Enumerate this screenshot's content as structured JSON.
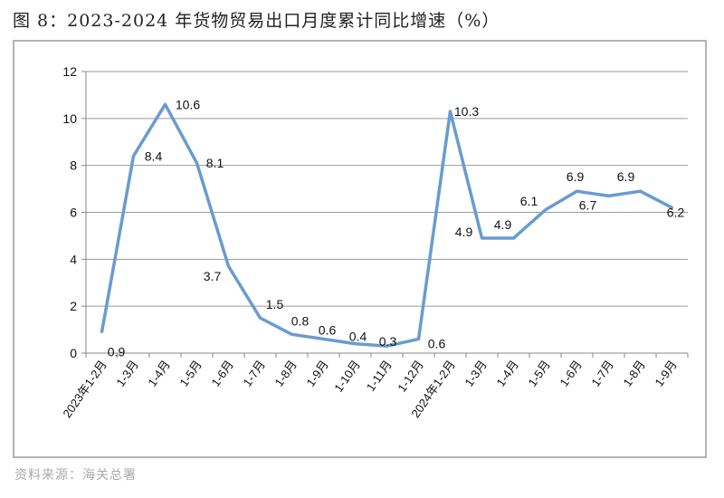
{
  "title": "图 8：2023-2024 年货物贸易出口月度累计同比增速（%）",
  "source": "资料来源：海关总署",
  "chart_data": {
    "type": "line",
    "title": "",
    "xlabel": "",
    "ylabel": "",
    "ylim": [
      0,
      12
    ],
    "yticks": [
      0,
      2,
      4,
      6,
      8,
      10,
      12
    ],
    "grid": "horizontal",
    "legend": "none",
    "color": "#6a9bcf",
    "categories": [
      "2023年1-2月",
      "1-3月",
      "1-4月",
      "1-5月",
      "1-6月",
      "1-7月",
      "1-8月",
      "1-9月",
      "1-10月",
      "1-11月",
      "1-12月",
      "2024年1-2月",
      "1-3月",
      "1-4月",
      "1-5月",
      "1-6月",
      "1-7月",
      "1-8月",
      "1-9月"
    ],
    "values": [
      0.9,
      8.4,
      10.6,
      8.1,
      3.7,
      1.5,
      0.8,
      0.6,
      0.4,
      0.3,
      0.6,
      10.3,
      4.9,
      4.9,
      6.1,
      6.9,
      6.7,
      6.9,
      6.2
    ],
    "data_labels": [
      "0.9",
      "8.4",
      "10.6",
      "8.1",
      "3.7",
      "1.5",
      "0.8",
      "0.6",
      "0.4",
      "0.3",
      "0.6",
      "10.3",
      "4.9",
      "4.9",
      "6.1",
      "6.9",
      "6.7",
      "6.9",
      "6.2"
    ]
  }
}
